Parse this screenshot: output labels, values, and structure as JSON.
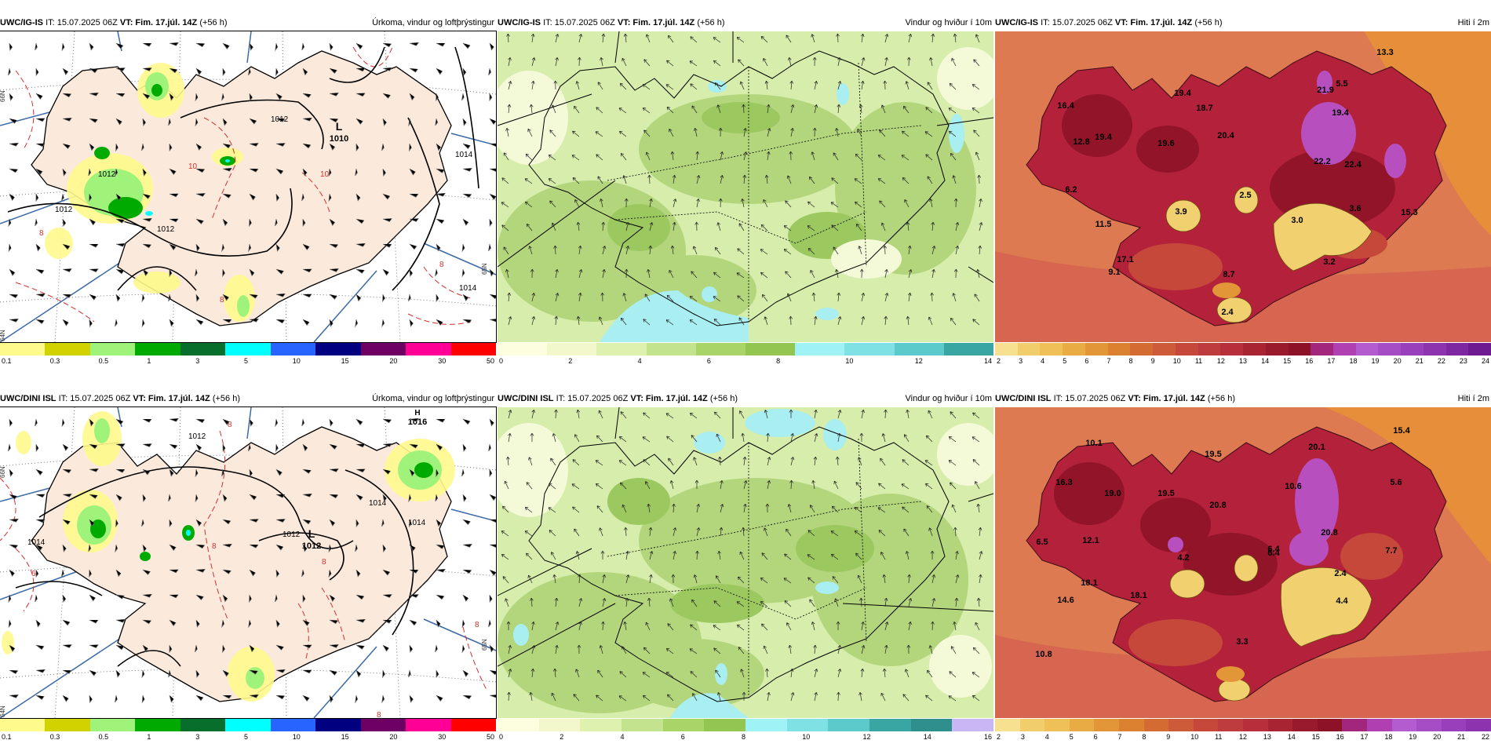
{
  "panels": [
    {
      "model": "UWC/IG-IS",
      "it": "IT: 15.07.2025 06Z",
      "vt": "VT: Fim. 17.júl. 14Z",
      "lead": "(+56 h)",
      "title": "Úrkoma, vindur og loftþrýstingur",
      "lows": [
        {
          "label": "L",
          "value": "1010"
        }
      ],
      "isobars": [
        "1012",
        "1012",
        "1012",
        "1012",
        "1014",
        "1014"
      ],
      "temp_contours": [
        "10",
        "10",
        "8",
        "8",
        "8"
      ],
      "lat_labels": [
        "66N",
        "65N",
        "64N"
      ],
      "legend_colors": [
        "#fffa8c",
        "#d2d200",
        "#a0f37a",
        "#00aa00",
        "#086e2b",
        "#00ffff",
        "#2864ff",
        "#000080",
        "#6e0064",
        "#ff0096",
        "#ff0000"
      ],
      "legend_ticks": [
        "0.1",
        "0.3",
        "0.5",
        "1",
        "3",
        "5",
        "10",
        "15",
        "20",
        "30",
        "50"
      ]
    },
    {
      "model": "UWC/IG-IS",
      "it": "IT: 15.07.2025 06Z",
      "vt": "VT: Fim. 17.júl. 14Z",
      "lead": "(+56 h)",
      "title": "Vindur og hviður í 10m",
      "legend_colors": [
        "#fdfde0",
        "#f3f8cc",
        "#def1ae",
        "#c4e38e",
        "#a8d468",
        "#92c650",
        "#9ff3f7",
        "#7fe1e4",
        "#5cc9cb",
        "#3aa6a4"
      ],
      "legend_ticks": [
        "0",
        "2",
        "4",
        "6",
        "8",
        "10",
        "12",
        "14"
      ]
    },
    {
      "model": "UWC/IG-IS",
      "it": "IT: 15.07.2025 06Z",
      "vt": "VT: Fim. 17.júl. 14Z",
      "lead": "(+56 h)",
      "title": "Hiti í 2m",
      "temps": [
        "13.3",
        "5.5",
        "21.9",
        "16.4",
        "19.4",
        "18.7",
        "19.4",
        "12.8",
        "19.4",
        "19.6",
        "20.4",
        "22.2",
        "22.4",
        "6.2",
        "3.9",
        "2.5",
        "3.0",
        "3.6",
        "15.3",
        "11.5",
        "3.2",
        "17.1",
        "9.1",
        "8.7",
        "2.4"
      ],
      "legend_colors": [
        "#f7e08f",
        "#f2cd6c",
        "#eec057",
        "#e9ab43",
        "#e29638",
        "#dc812f",
        "#d46b33",
        "#cd5a38",
        "#c6483a",
        "#be3b3e",
        "#b72f3a",
        "#a82433",
        "#991a2d",
        "#8d1127",
        "#a2267c",
        "#b040b2",
        "#b35cd0",
        "#a64dc6",
        "#9a3fbb",
        "#8d33ae",
        "#7d27a0",
        "#6e1b92"
      ],
      "legend_ticks": [
        "2",
        "3",
        "4",
        "5",
        "6",
        "7",
        "8",
        "9",
        "10",
        "11",
        "12",
        "13",
        "14",
        "15",
        "16",
        "17",
        "18",
        "19",
        "20",
        "21",
        "22",
        "23",
        "24"
      ]
    },
    {
      "model": "UWC/DINI ISL",
      "it": "IT: 15.07.2025 06Z",
      "vt": "VT: Fim. 17.júl. 14Z",
      "lead": "(+56 h)",
      "title": "Úrkoma, vindur og loftþrýstingur",
      "lows": [
        {
          "label": "L",
          "value": "1012"
        }
      ],
      "highs": [
        {
          "label": "H",
          "value": "1016"
        }
      ],
      "isobars": [
        "1012",
        "1012",
        "1014",
        "1014",
        "1014"
      ],
      "temp_contours": [
        "8",
        "8",
        "8",
        "8",
        "6",
        "8"
      ],
      "lat_labels": [
        "66N",
        "65N",
        "64N"
      ],
      "legend_colors": [
        "#fffa8c",
        "#d2d200",
        "#a0f37a",
        "#00aa00",
        "#086e2b",
        "#00ffff",
        "#2864ff",
        "#000080",
        "#6e0064",
        "#ff0096",
        "#ff0000"
      ],
      "legend_ticks": [
        "0.1",
        "0.3",
        "0.5",
        "1",
        "3",
        "5",
        "10",
        "15",
        "20",
        "30",
        "50"
      ]
    },
    {
      "model": "UWC/DINI ISL",
      "it": "IT: 15.07.2025 06Z",
      "vt": "VT: Fim. 17.júl. 14Z",
      "lead": "(+56 h)",
      "title": "Vindur og hviður í 10m",
      "legend_colors": [
        "#fdfde0",
        "#f3f8cc",
        "#def1ae",
        "#c4e38e",
        "#a8d468",
        "#92c650",
        "#9ff3f7",
        "#7fe1e4",
        "#5cc9cb",
        "#3aa6a4",
        "#2e8f8c",
        "#c9b6f5"
      ],
      "legend_ticks": [
        "0",
        "2",
        "4",
        "6",
        "8",
        "10",
        "12",
        "14",
        "16"
      ]
    },
    {
      "model": "UWC/DINI ISL",
      "it": "IT: 15.07.2025 06Z",
      "vt": "VT: Fim. 17.júl. 14Z",
      "lead": "(+56 h)",
      "title": "Hiti í 2m",
      "temps": [
        "15.4",
        "10.1",
        "20.1",
        "19.5",
        "16.3",
        "19.0",
        "19.5",
        "10.6",
        "5.6",
        "20.8",
        "6.5",
        "12.1",
        "4.2",
        "6.4",
        "20.8",
        "6.4",
        "7.7",
        "2.4",
        "18.1",
        "14.6",
        "18.1",
        "4.4",
        "3.3",
        "10.8"
      ],
      "legend_colors": [
        "#f7e08f",
        "#f2cd6c",
        "#eec057",
        "#e9ab43",
        "#e29638",
        "#dc812f",
        "#d46b33",
        "#cd5a38",
        "#c6483a",
        "#be3b3e",
        "#b72f3a",
        "#a82433",
        "#991a2d",
        "#8d1127",
        "#a2267c",
        "#b040b2",
        "#b35cd0",
        "#a64dc6",
        "#9a3fbb",
        "#8d33ae"
      ],
      "legend_ticks": [
        "2",
        "3",
        "4",
        "5",
        "6",
        "7",
        "8",
        "9",
        "10",
        "11",
        "12",
        "13",
        "14",
        "15",
        "16",
        "17",
        "18",
        "19",
        "20",
        "21",
        "22"
      ]
    }
  ]
}
